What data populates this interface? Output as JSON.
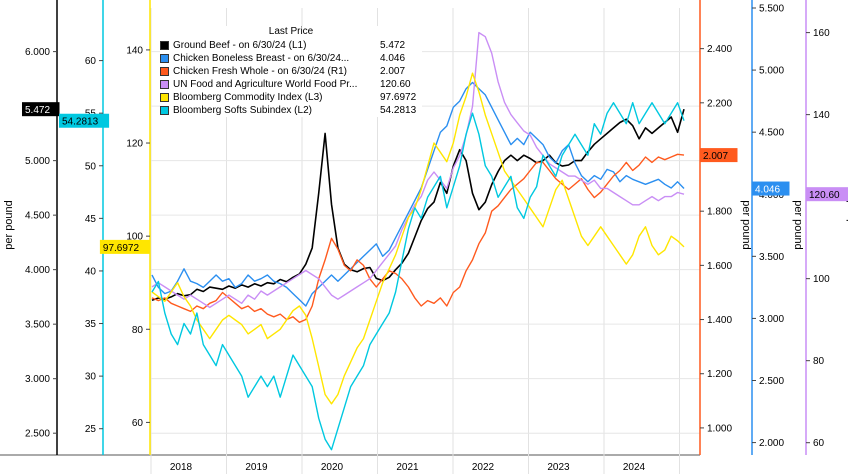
{
  "chart_data": {
    "type": "line",
    "legend_title": "Last Price",
    "x_labels": [
      "2018",
      "2019",
      "2020",
      "2021",
      "2022",
      "2023",
      "2024"
    ],
    "axes": {
      "L1": {
        "label": "per pound",
        "range": [
          2.3,
          6.4
        ],
        "ticks": [
          "2.500",
          "3.000",
          "3.500",
          "4.000",
          "4.500",
          "5.000",
          "5.500",
          "6.000"
        ],
        "color": "#000000"
      },
      "L2": {
        "range": [
          22.5,
          65
        ],
        "ticks": [
          "25",
          "30",
          "35",
          "40",
          "45",
          "50",
          "55",
          "60"
        ],
        "color": "#00c8e0"
      },
      "L3": {
        "range": [
          53,
          149
        ],
        "ticks": [
          "60",
          "80",
          "100",
          "120",
          "140"
        ],
        "color": "#ffe600"
      },
      "R1": {
        "label": "per pound",
        "range": [
          0.9,
          2.55
        ],
        "ticks": [
          "1.000",
          "1.200",
          "1.400",
          "1.600",
          "1.800",
          "2.000",
          "2.200",
          "2.400"
        ],
        "color": "#ff5a1e"
      },
      "R2": {
        "label": "per pound",
        "range": [
          1.9,
          5.5
        ],
        "ticks": [
          "2.000",
          "2.500",
          "3.000",
          "3.500",
          "4.000",
          "4.500",
          "5.000",
          "5.500"
        ],
        "color": "#2b8ff0"
      },
      "R3": {
        "label": "per pound",
        "range": [
          57,
          166
        ],
        "ticks": [
          "60",
          "80",
          "100",
          "120",
          "140",
          "160"
        ],
        "color": "#c98ef5"
      }
    },
    "series": [
      {
        "name": "Ground Beef -  on 6/30/24  (L1)",
        "last": "5.472",
        "color": "#000000",
        "axis": "L1",
        "tag": "5.472",
        "values": [
          3.72,
          3.74,
          3.73,
          3.75,
          3.78,
          3.76,
          3.77,
          3.82,
          3.8,
          3.84,
          3.83,
          3.82,
          3.85,
          3.83,
          3.86,
          3.84,
          3.87,
          3.85,
          3.88,
          3.87,
          3.91,
          3.89,
          3.93,
          3.96,
          4.05,
          4.2,
          4.7,
          5.25,
          4.6,
          4.2,
          4.05,
          4.0,
          3.98,
          4.01,
          4.02,
          3.92,
          3.9,
          3.93,
          4.0,
          4.06,
          4.15,
          4.3,
          4.45,
          4.56,
          4.62,
          4.8,
          4.7,
          4.95,
          5.1,
          5.0,
          4.7,
          4.55,
          4.62,
          4.78,
          4.9,
          5.0,
          5.05,
          5.0,
          5.05,
          5.02,
          4.98,
          5.0,
          5.05,
          4.98,
          4.95,
          4.96,
          5.0,
          5.0,
          5.08,
          5.15,
          5.2,
          5.25,
          5.3,
          5.35,
          5.38,
          5.32,
          5.2,
          5.3,
          5.25,
          5.3,
          5.35,
          5.4,
          5.26,
          5.472
        ]
      },
      {
        "name": "Chicken Boneless Breast -  on 6/30/24...",
        "last": "4.046",
        "color": "#2b8ff0",
        "axis": "R2",
        "tag": "4.046",
        "values": [
          3.35,
          3.25,
          3.2,
          3.22,
          3.3,
          3.4,
          3.3,
          3.28,
          3.25,
          3.3,
          3.35,
          3.3,
          3.32,
          3.25,
          3.28,
          3.35,
          3.3,
          3.32,
          3.35,
          3.3,
          3.28,
          3.25,
          3.2,
          3.15,
          3.1,
          3.2,
          3.25,
          3.3,
          3.35,
          3.3,
          3.35,
          3.4,
          3.45,
          3.5,
          3.55,
          3.6,
          3.5,
          3.55,
          3.65,
          3.75,
          3.85,
          3.95,
          4.05,
          4.2,
          4.35,
          4.5,
          4.55,
          4.7,
          4.75,
          4.85,
          4.9,
          4.85,
          4.8,
          4.7,
          4.6,
          4.5,
          4.4,
          4.45,
          4.4,
          4.5,
          4.45,
          4.4,
          4.3,
          4.25,
          4.35,
          4.4,
          4.25,
          4.15,
          4.1,
          4.15,
          4.12,
          4.2,
          4.18,
          4.1,
          4.15,
          4.12,
          4.1,
          4.08,
          4.1,
          4.12,
          4.08,
          4.05,
          4.1,
          4.046
        ]
      },
      {
        "name": "Chicken Fresh Whole -  on 6/30/24  (R1)",
        "last": "2.007",
        "color": "#ff5a1e",
        "axis": "R1",
        "tag": "2.007",
        "values": [
          1.48,
          1.47,
          1.48,
          1.46,
          1.45,
          1.44,
          1.43,
          1.45,
          1.44,
          1.46,
          1.47,
          1.5,
          1.48,
          1.46,
          1.44,
          1.45,
          1.43,
          1.44,
          1.42,
          1.41,
          1.42,
          1.4,
          1.41,
          1.39,
          1.4,
          1.45,
          1.55,
          1.62,
          1.7,
          1.66,
          1.6,
          1.58,
          1.62,
          1.6,
          1.55,
          1.52,
          1.55,
          1.58,
          1.57,
          1.55,
          1.52,
          1.48,
          1.45,
          1.47,
          1.46,
          1.48,
          1.45,
          1.5,
          1.52,
          1.58,
          1.62,
          1.68,
          1.72,
          1.8,
          1.82,
          1.85,
          1.88,
          1.9,
          1.92,
          1.95,
          1.98,
          1.98,
          1.95,
          1.92,
          1.9,
          1.88,
          1.9,
          1.92,
          1.88,
          1.85,
          1.87,
          1.9,
          1.93,
          1.95,
          1.98,
          1.95,
          1.97,
          2.0,
          1.98,
          2.0,
          1.99,
          2.0,
          2.01,
          2.007
        ]
      },
      {
        "name": "UN Food and Agriculture World Food Pr...",
        "last": "120.60",
        "color": "#c98ef5",
        "axis": "R3",
        "tag": "120.60",
        "values": [
          98,
          99,
          98,
          97,
          96,
          95,
          96,
          95,
          94,
          93,
          94,
          95,
          96,
          95,
          94,
          96,
          95,
          97,
          96,
          97,
          98,
          99,
          100,
          101,
          102,
          101,
          100,
          98,
          96,
          95,
          96,
          97,
          98,
          99,
          100,
          102,
          104,
          106,
          108,
          112,
          115,
          118,
          120,
          124,
          126,
          124,
          122,
          127,
          130,
          135,
          142,
          160,
          159,
          155,
          148,
          143,
          140,
          138,
          136,
          135,
          132,
          130,
          128,
          127,
          126,
          125,
          125,
          124,
          123,
          124,
          122,
          122,
          121,
          120,
          119,
          118,
          118,
          119,
          120,
          119,
          120,
          120,
          121,
          120.6
        ]
      },
      {
        "name": "Bloomberg Commodity Index  (L3)",
        "last": "97.6972",
        "color": "#ffe600",
        "axis": "L3",
        "tag": "97.6972",
        "values": [
          88,
          87,
          86,
          88,
          90,
          87,
          85,
          82,
          80,
          78,
          80,
          82,
          83,
          82,
          81,
          79,
          80,
          81,
          78,
          79,
          80,
          82,
          84,
          85,
          83,
          78,
          72,
          66,
          64,
          66,
          70,
          73,
          76,
          78,
          82,
          86,
          90,
          93,
          96,
          100,
          104,
          106,
          110,
          115,
          120,
          118,
          116,
          120,
          126,
          130,
          135,
          131,
          126,
          122,
          118,
          114,
          112,
          110,
          108,
          106,
          104,
          102,
          106,
          110,
          112,
          108,
          104,
          100,
          98,
          100,
          102,
          100,
          98,
          96,
          94,
          96,
          100,
          102,
          98,
          96,
          97,
          100,
          99,
          97.6972
        ]
      },
      {
        "name": "Bloomberg Softs Subindex  (L2)",
        "last": "54.2813",
        "color": "#00c8e0",
        "axis": "L2",
        "tag": "54.2813",
        "values": [
          38,
          39,
          36,
          34,
          33,
          35,
          34,
          36,
          33,
          32,
          31,
          33,
          32,
          31,
          30,
          28,
          29,
          30,
          29,
          30,
          28,
          30,
          32,
          31,
          30,
          29,
          26,
          24,
          23,
          25,
          27,
          29,
          30,
          31,
          33,
          34,
          35,
          36,
          38,
          41,
          44,
          46,
          45,
          47,
          48,
          49,
          46,
          48,
          50,
          53,
          55,
          53,
          50,
          49,
          47,
          48,
          49,
          46,
          45,
          47,
          48,
          51,
          50,
          49,
          51,
          52,
          53,
          52,
          51,
          54,
          53,
          55,
          56,
          55,
          54,
          56,
          54,
          55,
          56,
          55,
          54,
          55,
          56,
          54.2813
        ]
      }
    ]
  }
}
